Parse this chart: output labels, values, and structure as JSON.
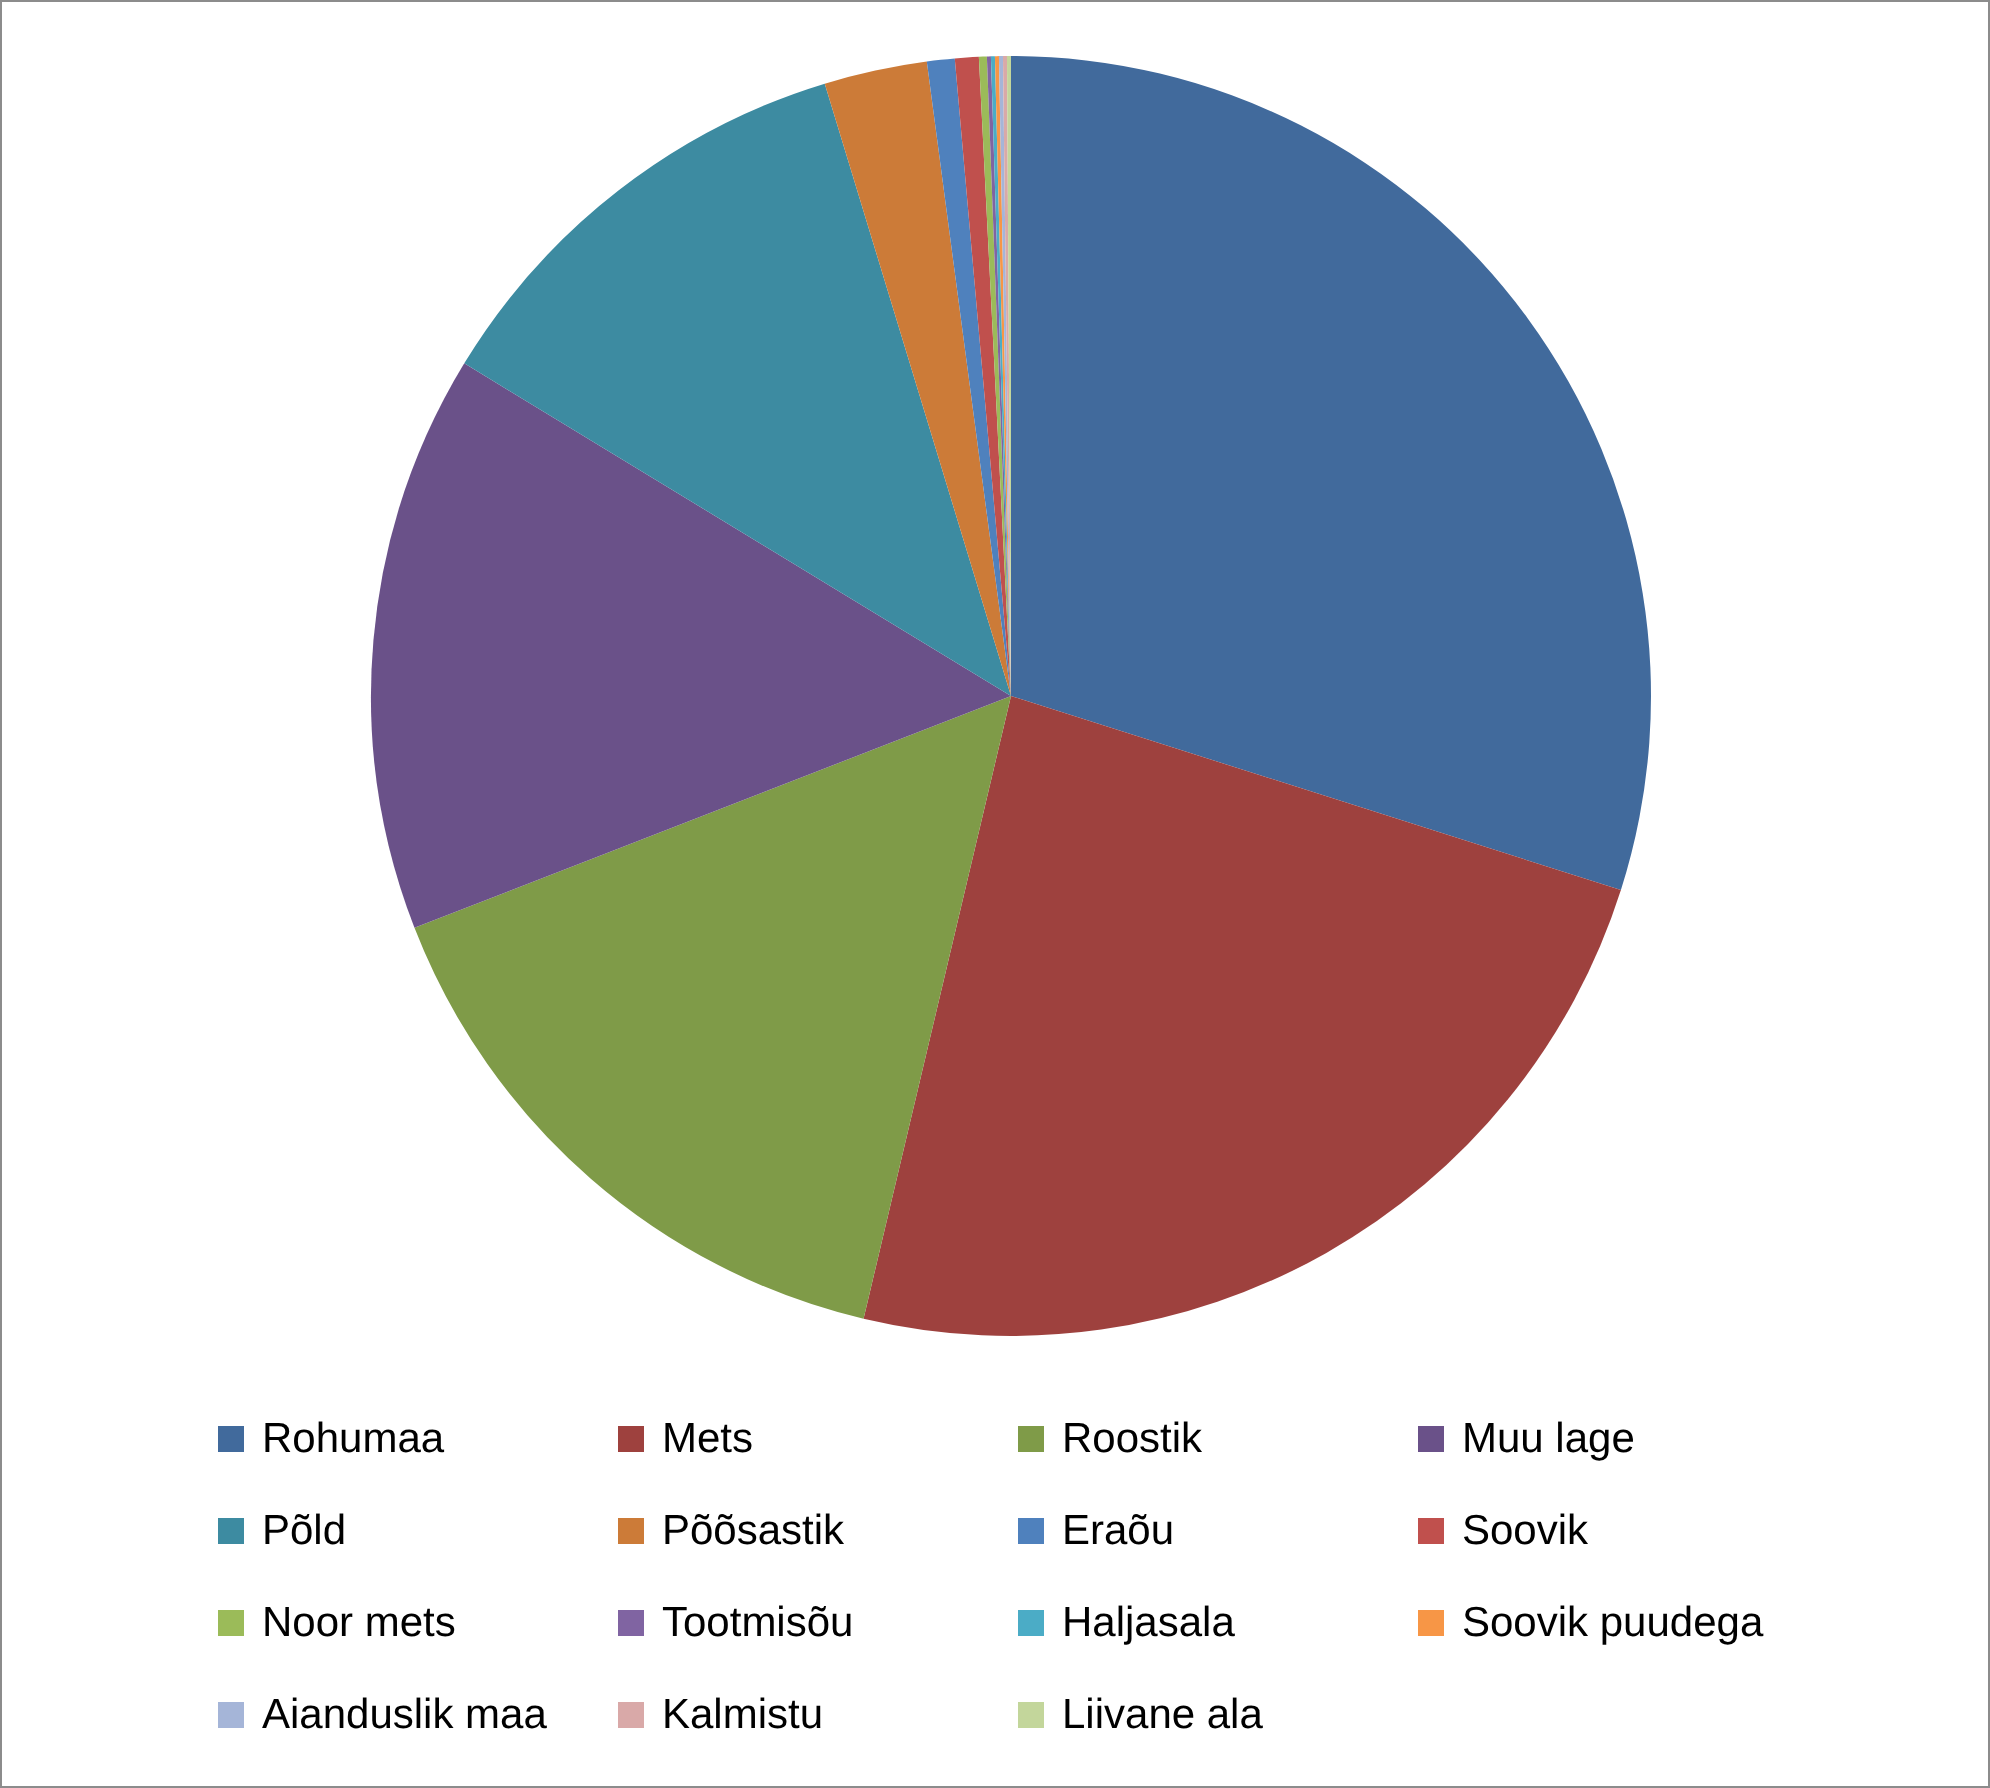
{
  "chart_data": {
    "type": "pie",
    "categories": [
      "Rohumaa",
      "Mets",
      "Roostik",
      "Muu lage",
      "Põld",
      "Põõsastik",
      "Eraõu",
      "Soovik",
      "Noor mets",
      "Tootmisõu",
      "Haljasala",
      "Soovik puudega",
      "Aianduslik maa",
      "Kalmistu",
      "Liivane ala"
    ],
    "values": [
      29.9,
      23.8,
      15.4,
      14.6,
      11.6,
      2.6,
      0.7,
      0.6,
      0.2,
      0.1,
      0.1,
      0.1,
      0.1,
      0.1,
      0.1
    ],
    "colors": [
      "#416a9c",
      "#9e413e",
      "#7f9b48",
      "#6a5189",
      "#3d8ba1",
      "#cc7b38",
      "#4f81bd",
      "#c0504d",
      "#9bbb59",
      "#8064a2",
      "#4bacc6",
      "#f79646",
      "#a5b5d8",
      "#d9a9a8",
      "#c3d69b"
    ],
    "legend": "bottom"
  }
}
